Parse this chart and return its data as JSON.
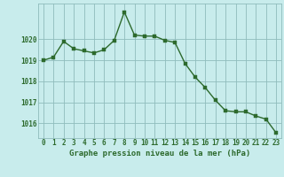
{
  "x": [
    0,
    1,
    2,
    3,
    4,
    5,
    6,
    7,
    8,
    9,
    10,
    11,
    12,
    13,
    14,
    15,
    16,
    17,
    18,
    19,
    20,
    21,
    22,
    23
  ],
  "y": [
    1019.0,
    1019.15,
    1019.9,
    1019.55,
    1019.45,
    1019.35,
    1019.5,
    1019.95,
    1021.3,
    1020.2,
    1020.15,
    1020.15,
    1019.95,
    1019.85,
    1018.85,
    1018.2,
    1017.7,
    1017.1,
    1016.6,
    1016.55,
    1016.55,
    1016.35,
    1016.2,
    1015.55
  ],
  "line_color": "#2d6a2d",
  "marker_color": "#2d6a2d",
  "bg_color": "#c8ecec",
  "grid_color": "#8fbcbc",
  "axis_label_color": "#2d6a2d",
  "xlabel": "Graphe pression niveau de la mer (hPa)",
  "ylim_min": 1015.3,
  "ylim_max": 1021.7,
  "yticks": [
    1016,
    1017,
    1018,
    1019,
    1020
  ],
  "xticks": [
    0,
    1,
    2,
    3,
    4,
    5,
    6,
    7,
    8,
    9,
    10,
    11,
    12,
    13,
    14,
    15,
    16,
    17,
    18,
    19,
    20,
    21,
    22,
    23
  ],
  "xtick_labels": [
    "0",
    "1",
    "2",
    "3",
    "4",
    "5",
    "6",
    "7",
    "8",
    "9",
    "10",
    "11",
    "12",
    "13",
    "14",
    "15",
    "16",
    "17",
    "18",
    "19",
    "20",
    "21",
    "22",
    "23"
  ],
  "tick_fontsize": 5.5,
  "xlabel_fontsize": 6.5,
  "line_width": 1.0,
  "marker_size": 2.5
}
